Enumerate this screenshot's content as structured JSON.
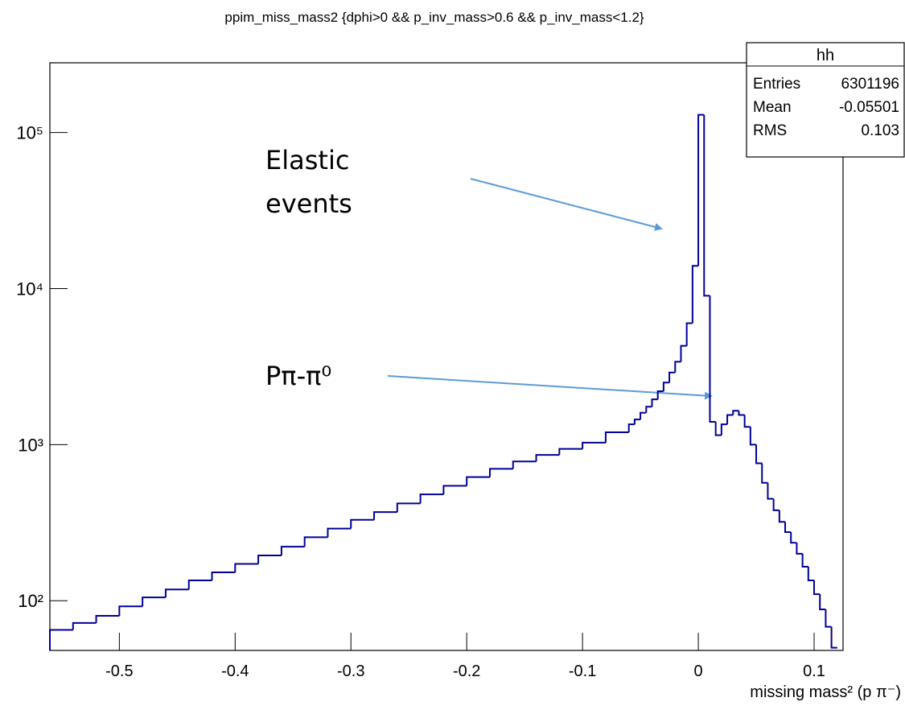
{
  "chart_data": {
    "type": "histogram",
    "title": "ppim_miss_mass2 {dphi>0 && p_inv_mass>0.6 && p_inv_mass<1.2}",
    "x_label": "missing mass² (p π⁻)",
    "log_y": true,
    "color": "#000099",
    "bins": [
      -0.56,
      -0.54,
      -0.52,
      -0.5,
      -0.48,
      -0.46,
      -0.44,
      -0.42,
      -0.4,
      -0.38,
      -0.36,
      -0.34,
      -0.32,
      -0.3,
      -0.28,
      -0.26,
      -0.24,
      -0.22,
      -0.2,
      -0.18,
      -0.16,
      -0.14,
      -0.12,
      -0.1,
      -0.08,
      -0.06,
      -0.055,
      -0.05,
      -0.045,
      -0.04,
      -0.035,
      -0.03,
      -0.025,
      -0.02,
      -0.015,
      -0.01,
      -0.005,
      0,
      0.005,
      0.01,
      0.015,
      0.02,
      0.025,
      0.03,
      0.035,
      0.04,
      0.045,
      0.05,
      0.055,
      0.06,
      0.065,
      0.07,
      0.075,
      0.08,
      0.085,
      0.09,
      0.095,
      0.1,
      0.105,
      0.11,
      0.115,
      0.12
    ],
    "values": [
      65,
      72,
      80,
      92,
      105,
      118,
      135,
      152,
      172,
      195,
      222,
      255,
      290,
      330,
      370,
      420,
      480,
      545,
      620,
      700,
      780,
      860,
      940,
      1030,
      1200,
      1350,
      1450,
      1600,
      1750,
      1950,
      2200,
      2500,
      2900,
      3400,
      4300,
      6000,
      14000,
      130000,
      9000,
      1400,
      1150,
      1350,
      1550,
      1650,
      1550,
      1300,
      1000,
      760,
      570,
      450,
      380,
      320,
      275,
      235,
      200,
      165,
      135,
      110,
      88,
      68,
      50
    ],
    "xlim": [
      -0.56,
      0.125
    ],
    "ylim": [
      48,
      280000
    ],
    "xticks": [
      -0.5,
      -0.4,
      -0.3,
      -0.2,
      -0.1,
      0,
      0.1
    ],
    "yticks": [
      {
        "value": 100,
        "label": "10²"
      },
      {
        "value": 1000,
        "label": "10³"
      },
      {
        "value": 10000,
        "label": "10⁴"
      },
      {
        "value": 100000,
        "label": "10⁵"
      }
    ],
    "stats": {
      "title": "hh",
      "rows": [
        {
          "label": "Entries",
          "value": 6301196
        },
        {
          "label": "Mean",
          "value": -0.05501
        },
        {
          "label": "RMS",
          "value": 0.103
        }
      ]
    },
    "annotations": [
      {
        "text": "Elastic events"
      },
      {
        "text": "Pπ-π⁰"
      }
    ]
  }
}
